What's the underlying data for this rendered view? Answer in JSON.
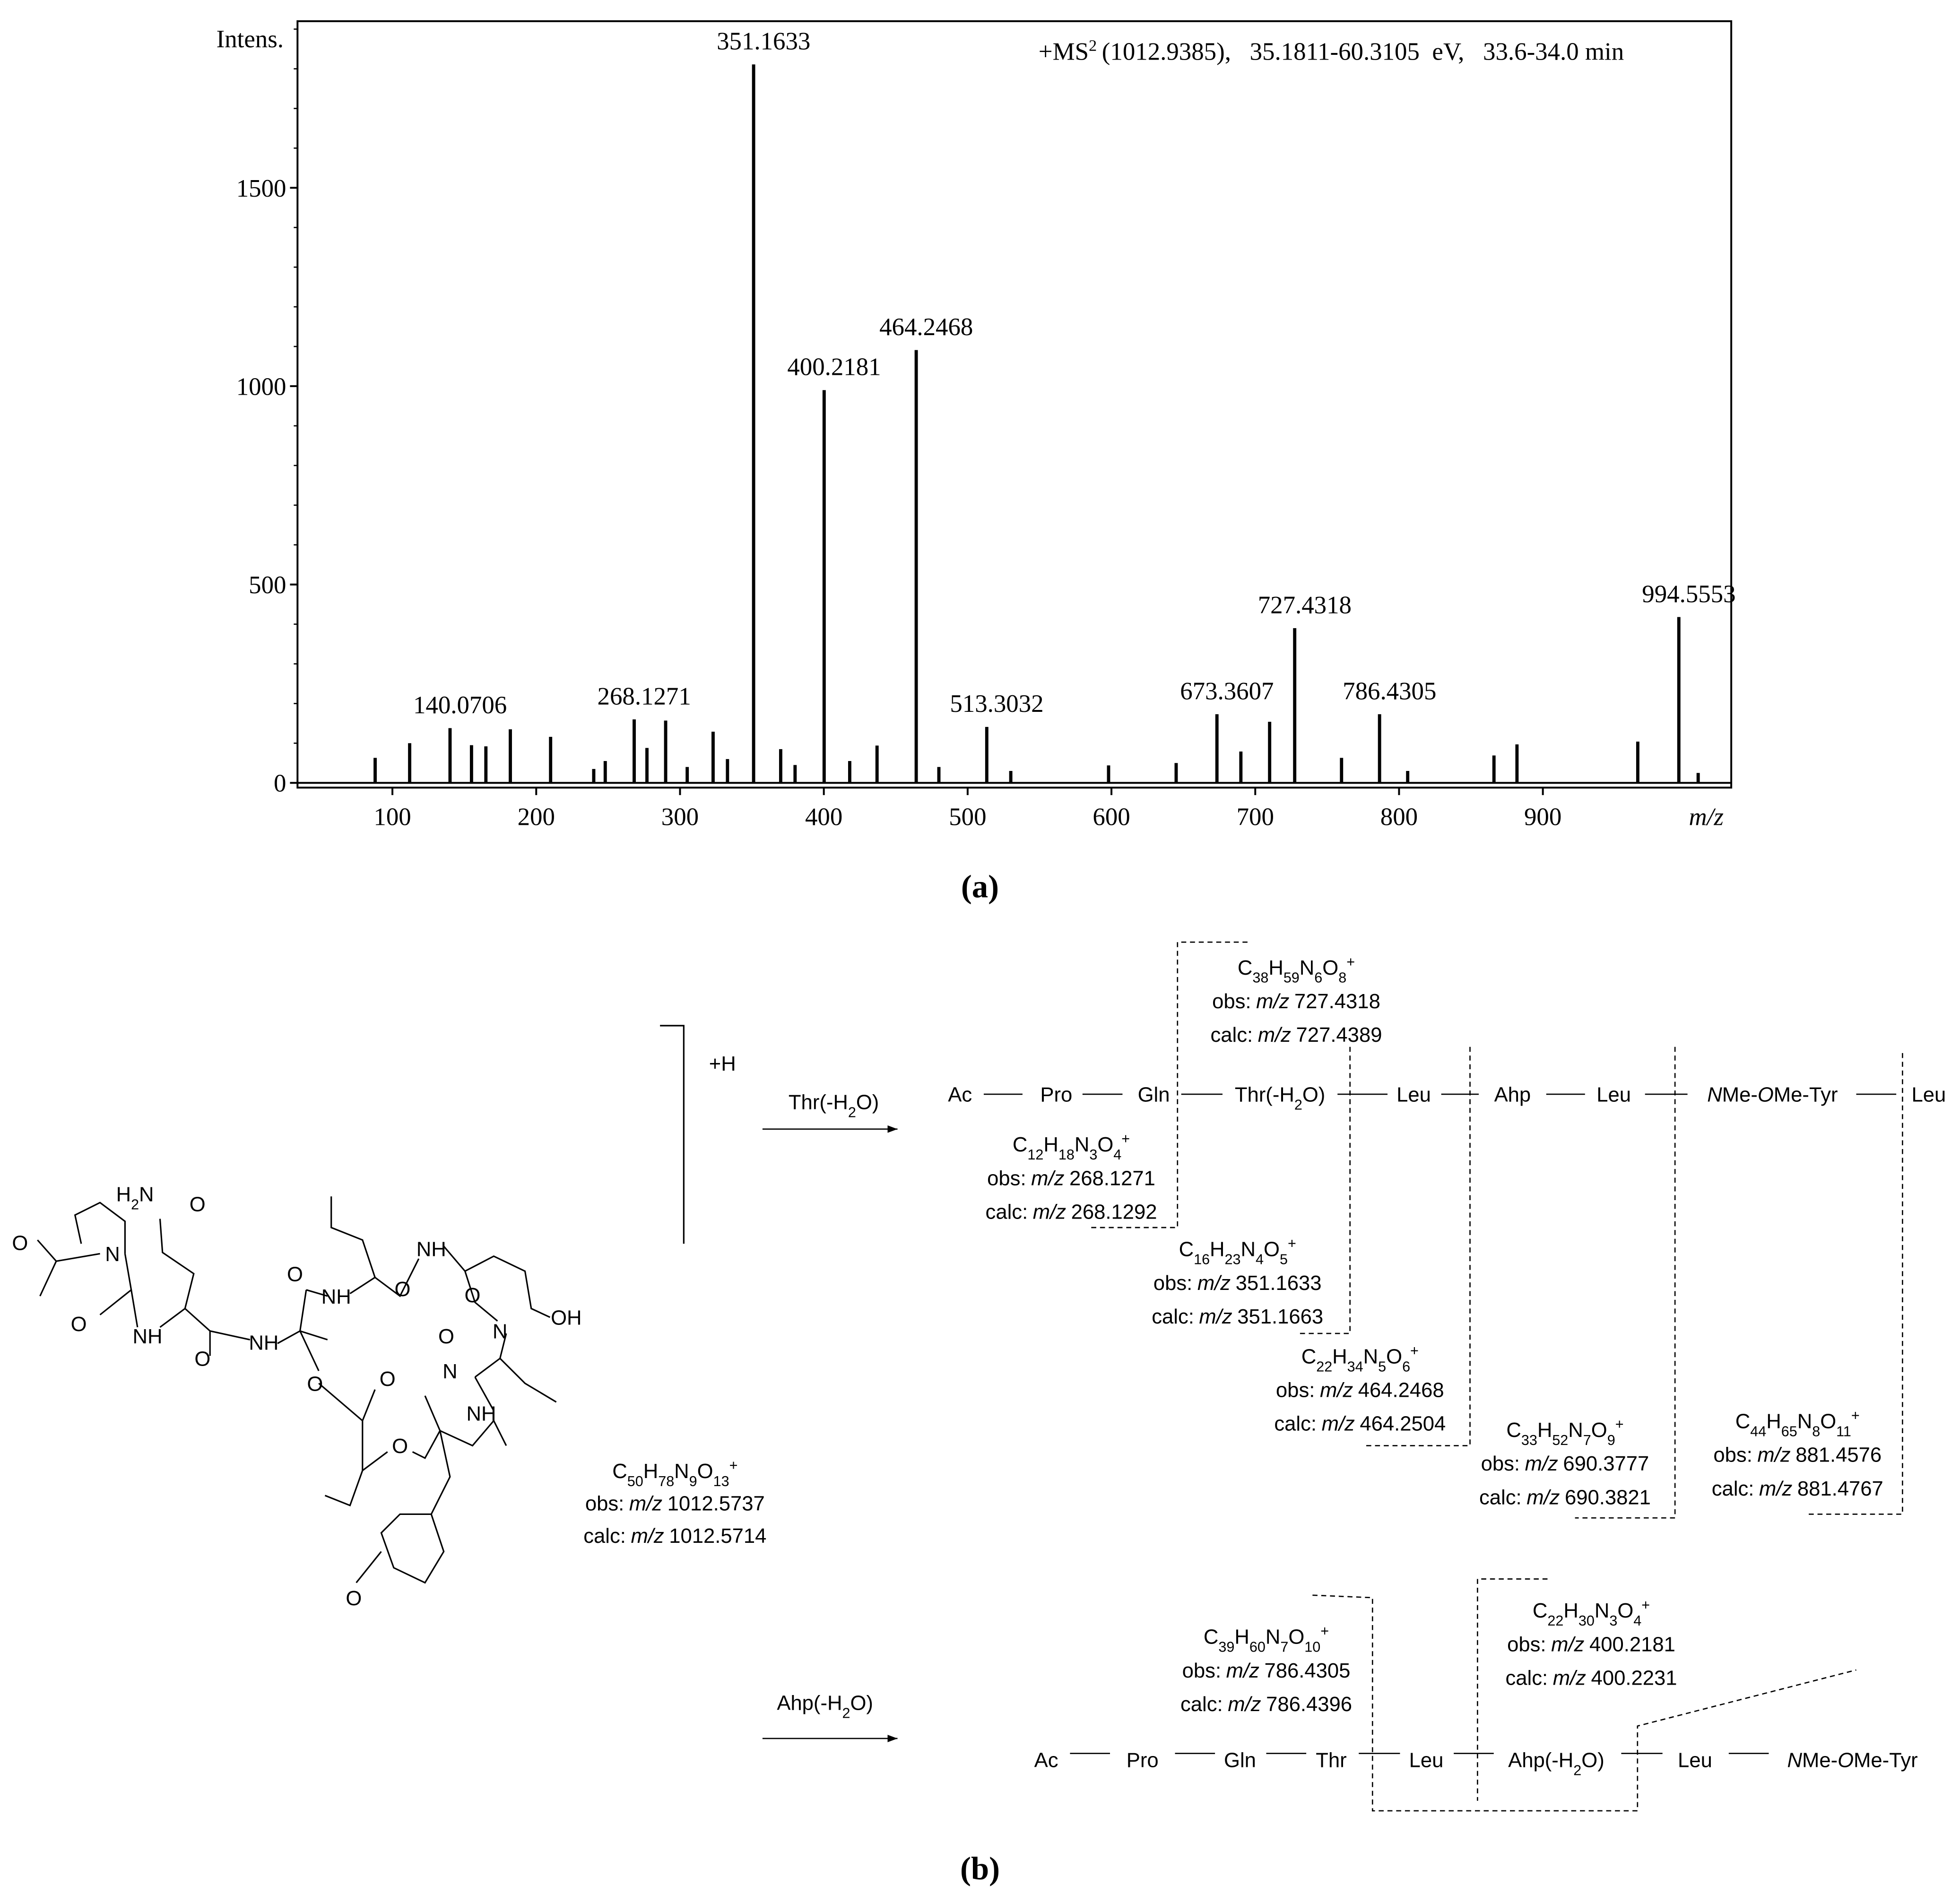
{
  "chart_data": {
    "type": "stem",
    "y_label": "Intens.",
    "x_label": "m/z",
    "annotation": {
      "prefix": "+MS",
      "sup": "2",
      "rest": "(1012.9385),   35.1811-60.3105  eV,   33.6-34.0 min"
    },
    "series": [
      {
        "color": "#000000",
        "label_peaks": true,
        "x": [
          140.0706,
          268.1271,
          351.1633,
          400.2181,
          464.2468,
          513.3032,
          673.3607,
          727.4318,
          786.4305,
          994.5553
        ],
        "values": [
          138,
          160,
          1811,
          990,
          1091,
          141,
          173,
          390,
          173,
          418
        ]
      },
      {
        "color": "#000000",
        "x": [
          88,
          112,
          155,
          165,
          182,
          210,
          240,
          248,
          277,
          290,
          305,
          323,
          333,
          370,
          380,
          418,
          437,
          480,
          530,
          598,
          645,
          690,
          710,
          760,
          806,
          866,
          882,
          966,
          1008
        ],
        "values": [
          63,
          100,
          95,
          92,
          135,
          116,
          35,
          55,
          88,
          157,
          40,
          129,
          60,
          85,
          45,
          55,
          94,
          40,
          30,
          44,
          50,
          79,
          154,
          63,
          30,
          69,
          97,
          104,
          25
        ]
      }
    ],
    "xlim": [
      34,
      1031
    ],
    "ylim": [
      -12,
      1920
    ],
    "xticks": [
      100,
      200,
      300,
      400,
      500,
      600,
      700,
      800,
      900
    ],
    "yticks": [
      0,
      500,
      1000,
      1500
    ],
    "yminorticks": [
      100,
      200,
      300,
      400,
      600,
      700,
      800,
      900,
      1100,
      1200,
      1300,
      1400,
      1600,
      1700,
      1800,
      1900
    ]
  },
  "panel_a": "(a)",
  "panel_b": "(b)",
  "obs_label": "obs:",
  "calc_label": "calc:",
  "mz_label": "m/z",
  "plus_h": "+H",
  "precursor": {
    "formula": "C50H78N9O13+",
    "obs": "1012.5737",
    "calc": "1012.5714"
  },
  "atoms": [
    "H2N",
    "O",
    "O",
    "N",
    "O",
    "NH",
    "O",
    "NH",
    "O",
    "NH",
    "O",
    "NH",
    "O",
    "OH",
    "N",
    "O",
    "O",
    "O",
    "N",
    "NH",
    "O",
    "O"
  ],
  "pathway1": {
    "arrow": "Thr(-H2O)",
    "residues": [
      "Ac",
      "Pro",
      "Gln",
      "Thr(-H2O)",
      "Leu",
      "Ahp",
      "Leu",
      "NMe-OMe-Tyr",
      "Leu"
    ],
    "fragments": [
      {
        "formula": "C38H59N6O8+",
        "obs": "727.4318",
        "calc": "727.4389"
      },
      {
        "formula": "C12H18N3O4+",
        "obs": "268.1271",
        "calc": "268.1292"
      },
      {
        "formula": "C16H23N4O5+",
        "obs": "351.1633",
        "calc": "351.1663"
      },
      {
        "formula": "C22H34N5O6+",
        "obs": "464.2468",
        "calc": "464.2504"
      },
      {
        "formula": "C33H52N7O9+",
        "obs": "690.3777",
        "calc": "690.3821"
      },
      {
        "formula": "C44H65N8O11+",
        "obs": "881.4576",
        "calc": "881.4767"
      }
    ]
  },
  "pathway2": {
    "arrow": "Ahp(-H2O)",
    "residues": [
      "Ac",
      "Pro",
      "Gln",
      "Thr",
      "Leu",
      "Ahp(-H2O)",
      "Leu",
      "NMe-OMe-Tyr"
    ],
    "fragments": [
      {
        "formula": "C39H60N7O10+",
        "obs": "786.4305",
        "calc": "786.4396"
      },
      {
        "formula": "C22H30N3O4+",
        "obs": "400.2181",
        "calc": "400.2231"
      }
    ]
  }
}
